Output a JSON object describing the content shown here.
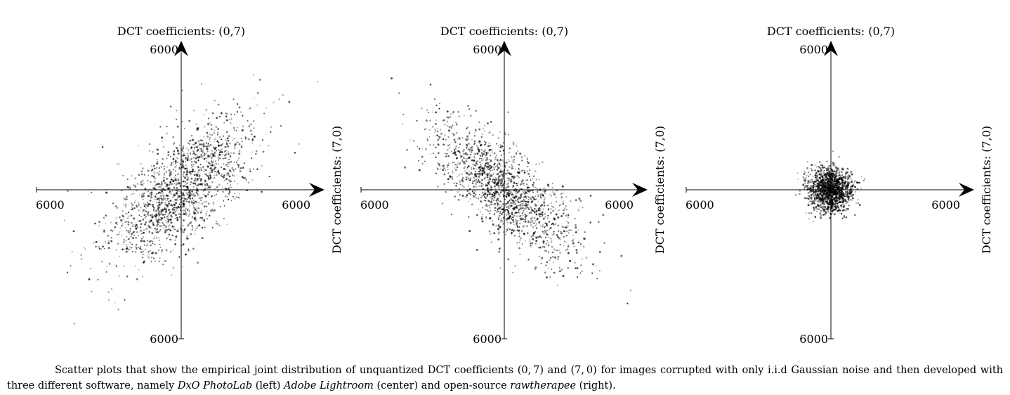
{
  "chart_data": [
    {
      "type": "scatter",
      "title": "",
      "ylabel": "DCT coefficients: (0,7)",
      "xlabel": "DCT coefficients: (7,0)",
      "xlim": [
        -6000,
        6000
      ],
      "ylim": [
        -6000,
        6000
      ],
      "tick_labels": {
        "x_left": "6000",
        "x_right": "6000",
        "y_top": "6000",
        "y_bottom": "6000"
      },
      "distribution": {
        "mean": [
          0,
          0
        ],
        "std": [
          1500,
          1500
        ],
        "correlation": 0.65,
        "n_points": 1600
      },
      "grid": false
    },
    {
      "type": "scatter",
      "title": "",
      "ylabel": "DCT coefficients: (0,7)",
      "xlabel": "DCT coefficients: (7,0)",
      "xlim": [
        -6000,
        6000
      ],
      "ylim": [
        -6000,
        6000
      ],
      "tick_labels": {
        "x_left": "6000",
        "x_right": "6000",
        "y_top": "6000",
        "y_bottom": "6000"
      },
      "distribution": {
        "mean": [
          0,
          0
        ],
        "std": [
          1500,
          1400
        ],
        "correlation": -0.72,
        "n_points": 1600
      },
      "grid": false
    },
    {
      "type": "scatter",
      "title": "",
      "ylabel": "DCT coefficients: (0,7)",
      "xlabel": "DCT coefficients: (7,0)",
      "xlim": [
        -6000,
        6000
      ],
      "ylim": [
        -6000,
        6000
      ],
      "tick_labels": {
        "x_left": "6000",
        "x_right": "6000",
        "y_top": "6000",
        "y_bottom": "6000"
      },
      "distribution": {
        "mean": [
          0,
          0
        ],
        "std": [
          450,
          450
        ],
        "correlation": 0.0,
        "n_points": 1600
      },
      "grid": false
    }
  ],
  "caption": {
    "text1": "Scatter plots that show the empirical joint distribution of unquantized DCT coefficients (0, 7) and (7, 0) for images corrupted with only i.i.d Gaussian noise and then developed with three different software, namely ",
    "software1": "DxO PhotoLab",
    "text2": " (left) ",
    "software2": "Adobe Lightroom",
    "text3": " (center) and open-source ",
    "software3": "rawtherapee",
    "text4": " (right)."
  }
}
